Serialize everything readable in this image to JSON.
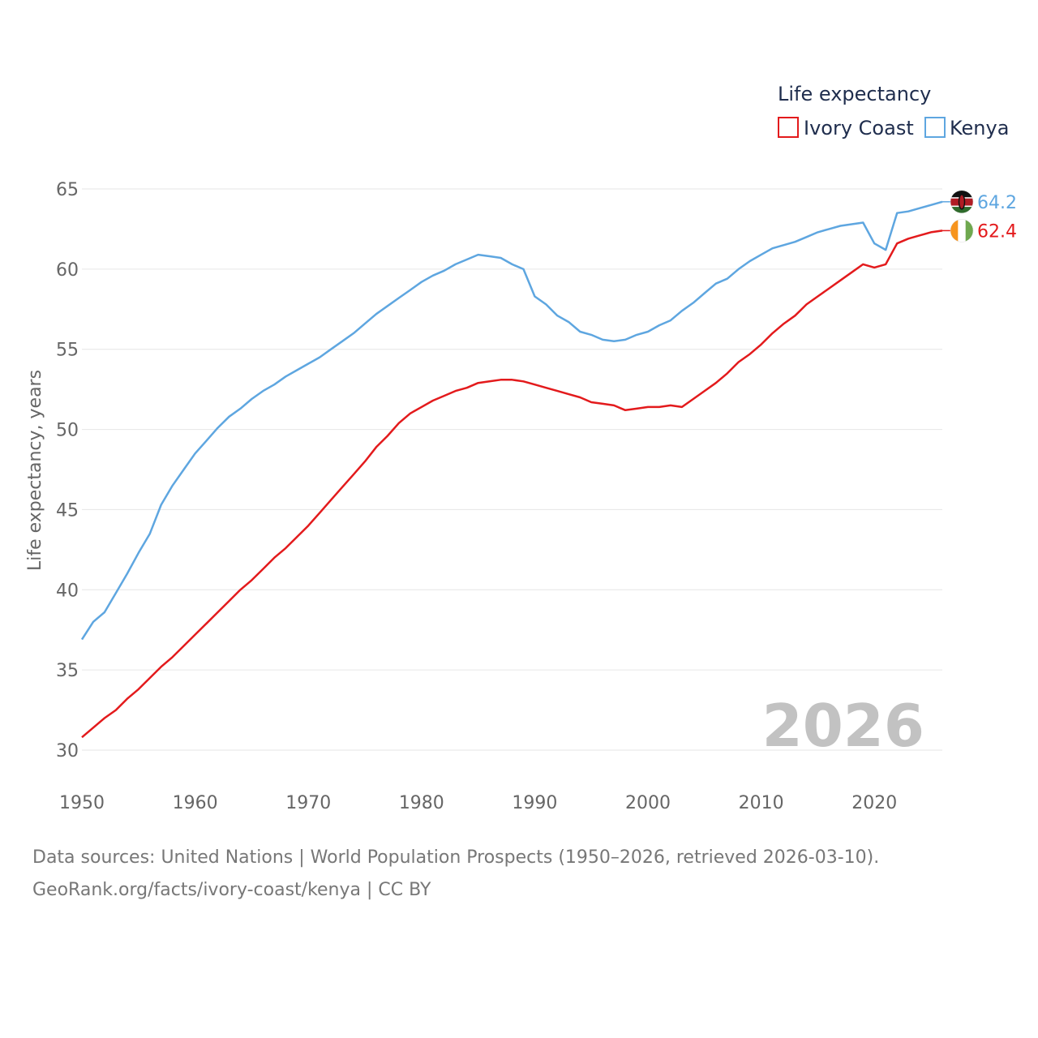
{
  "chart_data": {
    "type": "line",
    "title": "Life expectancy",
    "ylabel": "Life expectancy, years",
    "xlabel": "",
    "xlim": [
      1950,
      2026
    ],
    "ylim": [
      30,
      65
    ],
    "x_ticks": [
      1950,
      1960,
      1970,
      1980,
      1990,
      2000,
      2010,
      2020
    ],
    "y_ticks": [
      30,
      35,
      40,
      45,
      50,
      55,
      60,
      65
    ],
    "grid": true,
    "legend_position": "top-right",
    "year_label": "2026",
    "x": [
      1950,
      1951,
      1952,
      1953,
      1954,
      1955,
      1956,
      1957,
      1958,
      1959,
      1960,
      1961,
      1962,
      1963,
      1964,
      1965,
      1966,
      1967,
      1968,
      1969,
      1970,
      1971,
      1972,
      1973,
      1974,
      1975,
      1976,
      1977,
      1978,
      1979,
      1980,
      1981,
      1982,
      1983,
      1984,
      1985,
      1986,
      1987,
      1988,
      1989,
      1990,
      1991,
      1992,
      1993,
      1994,
      1995,
      1996,
      1997,
      1998,
      1999,
      2000,
      2001,
      2002,
      2003,
      2004,
      2005,
      2006,
      2007,
      2008,
      2009,
      2010,
      2011,
      2012,
      2013,
      2014,
      2015,
      2016,
      2017,
      2018,
      2019,
      2020,
      2021,
      2022,
      2023,
      2024,
      2025,
      2026
    ],
    "series": [
      {
        "name": "Ivory Coast",
        "color": "#e31a1c",
        "end_label": "62.4",
        "flag": "ivory-coast-flag-icon",
        "values": [
          30.8,
          31.4,
          32.0,
          32.5,
          33.2,
          33.8,
          34.5,
          35.2,
          35.8,
          36.5,
          37.2,
          37.9,
          38.6,
          39.3,
          40.0,
          40.6,
          41.3,
          42.0,
          42.6,
          43.3,
          44.0,
          44.8,
          45.6,
          46.4,
          47.2,
          48.0,
          48.9,
          49.6,
          50.4,
          51.0,
          51.4,
          51.8,
          52.1,
          52.4,
          52.6,
          52.9,
          53.0,
          53.1,
          53.1,
          53.0,
          52.8,
          52.6,
          52.4,
          52.2,
          52.0,
          51.7,
          51.6,
          51.5,
          51.2,
          51.3,
          51.4,
          51.4,
          51.5,
          51.4,
          51.9,
          52.4,
          52.9,
          53.5,
          54.2,
          54.7,
          55.3,
          56.0,
          56.6,
          57.1,
          57.8,
          58.3,
          58.8,
          59.3,
          59.8,
          60.3,
          60.1,
          60.3,
          61.6,
          61.9,
          62.1,
          62.3,
          62.4
        ]
      },
      {
        "name": "Kenya",
        "color": "#5ea6e0",
        "end_label": "64.2",
        "flag": "kenya-flag-icon",
        "values": [
          36.9,
          38.0,
          38.6,
          39.8,
          41.0,
          42.3,
          43.5,
          45.3,
          46.5,
          47.5,
          48.5,
          49.3,
          50.1,
          50.8,
          51.3,
          51.9,
          52.4,
          52.8,
          53.3,
          53.7,
          54.1,
          54.5,
          55.0,
          55.5,
          56.0,
          56.6,
          57.2,
          57.7,
          58.2,
          58.7,
          59.2,
          59.6,
          59.9,
          60.3,
          60.6,
          60.9,
          60.8,
          60.7,
          60.3,
          60.0,
          58.3,
          57.8,
          57.1,
          56.7,
          56.1,
          55.9,
          55.6,
          55.5,
          55.6,
          55.9,
          56.1,
          56.5,
          56.8,
          57.4,
          57.9,
          58.5,
          59.1,
          59.4,
          60.0,
          60.5,
          60.9,
          61.3,
          61.5,
          61.7,
          62.0,
          62.3,
          62.5,
          62.7,
          62.8,
          62.9,
          61.6,
          61.2,
          63.5,
          63.6,
          63.8,
          64.0,
          64.2
        ]
      }
    ]
  },
  "footer": {
    "line1": "Data sources: United Nations | World Population Prospects (1950–2026, retrieved 2026-03-10).",
    "line2": "GeoRank.org/facts/ivory-coast/kenya | CC BY"
  }
}
